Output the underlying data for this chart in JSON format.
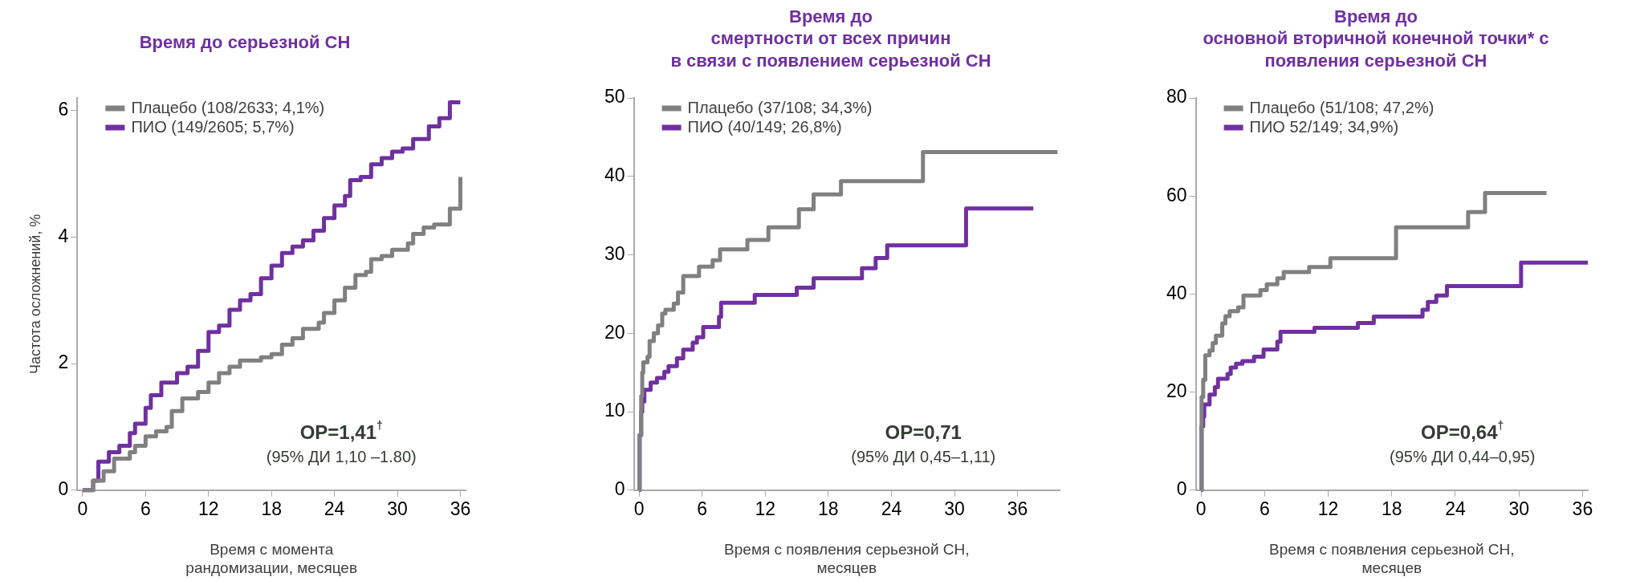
{
  "chart_data": [
    {
      "type": "step",
      "title": "Время до серьезной СН",
      "xlabel": "Время с момента\nрандомизации, месяцев",
      "ylabel": "Частота осложнений, %",
      "xlim": [
        -0.5,
        36.5
      ],
      "xticks": [
        0,
        6,
        12,
        18,
        24,
        30,
        36
      ],
      "ylim": [
        0,
        6.2
      ],
      "yticks": [
        0,
        2,
        4,
        6
      ],
      "legend": "top left",
      "annotations": [
        "ОР=1,41$^{†}$",
        "(95% ДИ 1,10 –1.80)"
      ],
      "series": [
        {
          "name": "Плацебо (108/2633; 4,1%)",
          "color": "#808080",
          "x": [
            0,
            1,
            2,
            3,
            4,
            4.5,
            5,
            6,
            7,
            8,
            8.5,
            9.5,
            11,
            12,
            13,
            14,
            15,
            17,
            18,
            19,
            20,
            21,
            22.5,
            23,
            24,
            25,
            26,
            27,
            27.5,
            28.5,
            29.5,
            31,
            31.5,
            32.5,
            33.5,
            35,
            36
          ],
          "values": [
            0,
            0.15,
            0.3,
            0.5,
            0.5,
            0.6,
            0.7,
            0.85,
            0.93,
            1.0,
            1.25,
            1.45,
            1.55,
            1.7,
            1.85,
            1.95,
            2.05,
            2.1,
            2.15,
            2.3,
            2.4,
            2.55,
            2.65,
            2.8,
            3.0,
            3.2,
            3.4,
            3.45,
            3.65,
            3.7,
            3.8,
            3.9,
            4.05,
            4.15,
            4.2,
            4.45,
            4.95
          ]
        },
        {
          "name": "ПИО (149/2605; 5,7%)",
          "color": "#7030a0",
          "x": [
            0,
            1,
            1.5,
            2.5,
            3.5,
            4.5,
            5,
            6,
            6.5,
            7.5,
            9,
            10,
            11,
            12,
            13,
            14,
            15,
            16,
            17,
            18,
            19,
            20,
            21,
            22,
            23,
            24,
            25,
            25.5,
            26.5,
            27.5,
            28.5,
            29.5,
            30.5,
            31.5,
            33,
            34,
            35,
            36
          ],
          "values": [
            0,
            0.15,
            0.45,
            0.6,
            0.7,
            0.9,
            1.05,
            1.3,
            1.5,
            1.7,
            1.85,
            1.95,
            2.2,
            2.5,
            2.6,
            2.85,
            3.0,
            3.1,
            3.35,
            3.55,
            3.75,
            3.85,
            3.95,
            4.1,
            4.3,
            4.5,
            4.65,
            4.9,
            4.95,
            5.15,
            5.25,
            5.35,
            5.4,
            5.55,
            5.75,
            5.88,
            6.13,
            6.13
          ]
        }
      ]
    },
    {
      "type": "step",
      "title": "Время до\nсмертности от всех причин\nв связи с появлением серьезной СН",
      "xlabel": "Время с появления серьезной СН,\nмесяцев",
      "xlim": [
        -0.5,
        40
      ],
      "xticks": [
        0,
        6,
        12,
        18,
        24,
        30,
        36
      ],
      "ylim": [
        0,
        50
      ],
      "yticks": [
        0,
        10,
        20,
        30,
        40,
        50
      ],
      "legend": "top left",
      "annotations": [
        "ОР=0,71",
        "(95% ДИ 0,45–1,11)"
      ],
      "series": [
        {
          "name": "Плацебо (37/108; 34,3%)",
          "color": "#808080",
          "x": [
            0,
            0.05,
            0.2,
            0.3,
            0.4,
            0.8,
            1,
            1.4,
            1.8,
            2.2,
            2.5,
            3.3,
            3.7,
            4.2,
            5.7,
            7,
            7.7,
            10.3,
            12.3,
            15.2,
            16.6,
            19.2,
            27,
            39.8
          ],
          "values": [
            0,
            7,
            12,
            15,
            16.3,
            17,
            19,
            20,
            21,
            22.5,
            23,
            23.8,
            25.2,
            27.3,
            28.5,
            29.3,
            30.7,
            31.9,
            33.5,
            35.8,
            37.7,
            39.4,
            43.1,
            43.1
          ]
        },
        {
          "name": "ПИО (40/149; 26,8%)",
          "color": "#7030a0",
          "x": [
            0,
            0.05,
            0.2,
            0.3,
            0.5,
            1.1,
            1.7,
            2.4,
            2.8,
            3.6,
            4.2,
            5.1,
            5.5,
            6.1,
            7.6,
            7.8,
            11,
            15,
            16.6,
            21.2,
            22.5,
            23.6,
            31.1,
            37.5
          ],
          "values": [
            0,
            7,
            10,
            11.3,
            12.8,
            13.7,
            14.3,
            15.1,
            15.8,
            16.8,
            17.9,
            18.8,
            19.5,
            20.8,
            22.1,
            23.9,
            24.9,
            25.8,
            27.0,
            28.3,
            29.6,
            31.2,
            35.9,
            35.9
          ]
        }
      ]
    },
    {
      "type": "step",
      "title": "Время до\nосновной вторичной конечной точки* с\nпоявления серьезной СН",
      "xlabel": "Время с появления серьезной СН,\nмесяцев",
      "xlim": [
        -0.5,
        36.5
      ],
      "xticks": [
        0,
        6,
        12,
        18,
        24,
        30,
        36
      ],
      "ylim": [
        0,
        80
      ],
      "yticks": [
        0,
        20,
        40,
        60,
        80
      ],
      "legend": "top left",
      "annotations": [
        "ОР=0,64$^{†}$",
        "(95% ДИ 0,44–0,95)"
      ],
      "series": [
        {
          "name": "Плацебо (51/108; 47,2%)",
          "color": "#808080",
          "x": [
            0,
            0.05,
            0.2,
            0.4,
            0.8,
            1.1,
            1.4,
            2,
            2.3,
            2.7,
            3.5,
            4,
            5.6,
            6.2,
            7.2,
            7.8,
            10.2,
            12.2,
            18.4,
            25.2,
            26.8,
            32.6
          ],
          "values": [
            0,
            19,
            22.5,
            27.5,
            28.5,
            30,
            31.5,
            34,
            35.5,
            36.5,
            37.3,
            39.7,
            40.8,
            42,
            43.2,
            44.5,
            45.5,
            47.3,
            53.6,
            56.7,
            60.6,
            60.6
          ]
        },
        {
          "name": "ПИО 52/149; 34,9%)",
          "color": "#7030a0",
          "x": [
            0,
            0.05,
            0.2,
            0.3,
            0.8,
            1.3,
            1.6,
            2.5,
            2.8,
            3.3,
            3.9,
            5,
            5.9,
            7.2,
            7.5,
            10.7,
            14.8,
            16.3,
            20.9,
            21.4,
            22.2,
            23.2,
            30.2,
            36.5
          ],
          "values": [
            0,
            13,
            15,
            17.5,
            19.5,
            21,
            22.7,
            23.7,
            25,
            25.8,
            26.3,
            27.2,
            28.7,
            30.3,
            32.3,
            33.1,
            34.1,
            35.4,
            36.8,
            38.4,
            39.7,
            41.6,
            46.4,
            46.4
          ]
        }
      ]
    }
  ]
}
